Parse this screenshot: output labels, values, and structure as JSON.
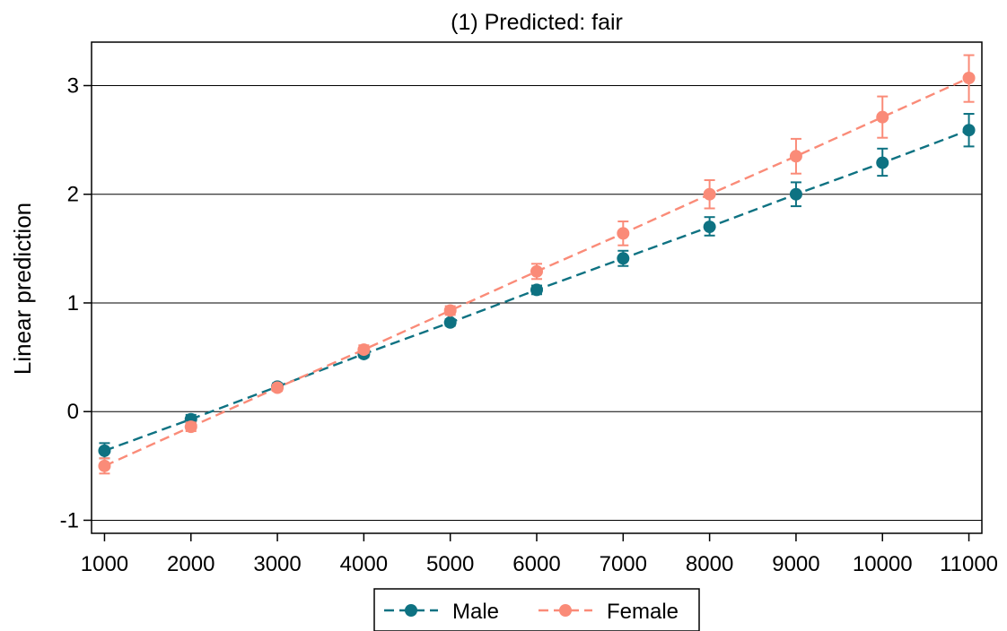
{
  "chart_data": {
    "type": "line",
    "title": "(1) Predicted: fair",
    "xlabel": "",
    "ylabel": "Linear prediction",
    "x": [
      1000,
      2000,
      3000,
      4000,
      5000,
      6000,
      7000,
      8000,
      9000,
      10000,
      11000
    ],
    "xlim": [
      850,
      11150
    ],
    "ylim": [
      -1.12,
      3.4
    ],
    "yticks": [
      -1,
      0,
      1,
      2,
      3
    ],
    "grid": "horizontal",
    "legend_position": "bottom",
    "series": [
      {
        "name": "Male",
        "color": "#0e7282",
        "marker": "circle",
        "line_style": "dashed",
        "values": [
          -0.36,
          -0.07,
          0.23,
          0.53,
          0.82,
          1.12,
          1.41,
          1.7,
          2.0,
          2.29,
          2.59
        ],
        "ci_low": [
          -0.43,
          -0.11,
          0.2,
          0.5,
          0.79,
          1.08,
          1.34,
          1.62,
          1.89,
          2.17,
          2.44
        ],
        "ci_high": [
          -0.29,
          -0.03,
          0.26,
          0.56,
          0.85,
          1.16,
          1.48,
          1.79,
          2.11,
          2.42,
          2.74
        ]
      },
      {
        "name": "Female",
        "color": "#fa8b78",
        "marker": "circle",
        "line_style": "dashed",
        "values": [
          -0.5,
          -0.14,
          0.22,
          0.57,
          0.93,
          1.29,
          1.64,
          2.0,
          2.35,
          2.71,
          3.07
        ],
        "ci_low": [
          -0.57,
          -0.18,
          0.19,
          0.54,
          0.89,
          1.22,
          1.53,
          1.87,
          2.19,
          2.52,
          2.85
        ],
        "ci_high": [
          -0.43,
          -0.1,
          0.25,
          0.61,
          0.97,
          1.36,
          1.75,
          2.13,
          2.51,
          2.9,
          3.28
        ]
      }
    ]
  }
}
